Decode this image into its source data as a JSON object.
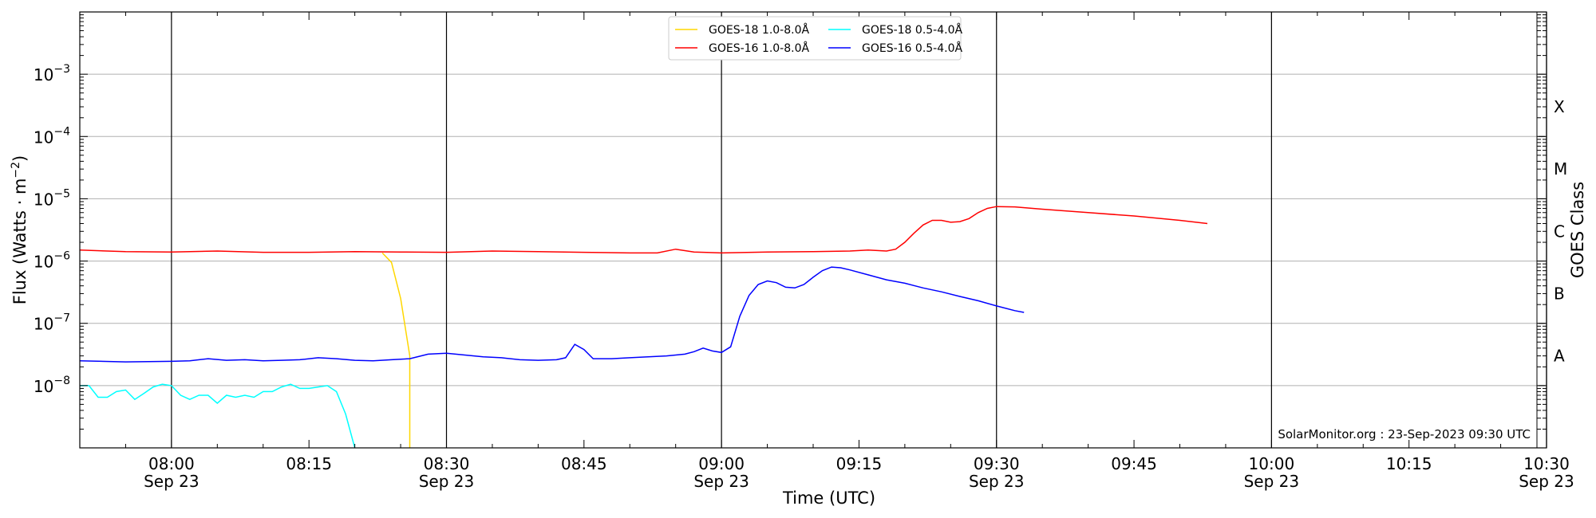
{
  "chart_data": {
    "type": "line",
    "title": "",
    "xlabel": "Time (UTC)",
    "ylabel": "Flux (Watts · m",
    "ylabel_sup": "−2",
    "ylabel_close": ")",
    "y2label": "GOES Class",
    "y_scale": "log",
    "ylim": [
      1e-09,
      0.01
    ],
    "xlim": [
      "07:50",
      "10:30"
    ],
    "date_label": "Sep 23",
    "x_ticks": [
      {
        "t": "08:00",
        "label": "08:00",
        "date": "Sep 23"
      },
      {
        "t": "08:15",
        "label": "08:15",
        "date": ""
      },
      {
        "t": "08:30",
        "label": "08:30",
        "date": "Sep 23"
      },
      {
        "t": "08:45",
        "label": "08:45",
        "date": ""
      },
      {
        "t": "09:00",
        "label": "09:00",
        "date": "Sep 23"
      },
      {
        "t": "09:15",
        "label": "09:15",
        "date": ""
      },
      {
        "t": "09:30",
        "label": "09:30",
        "date": "Sep 23"
      },
      {
        "t": "09:45",
        "label": "09:45",
        "date": ""
      },
      {
        "t": "10:00",
        "label": "10:00",
        "date": "Sep 23"
      },
      {
        "t": "10:15",
        "label": "10:15",
        "date": ""
      },
      {
        "t": "10:30",
        "label": "10:30",
        "date": "Sep 23"
      }
    ],
    "vertical_lines": [
      "08:00",
      "08:30",
      "09:00",
      "09:30",
      "10:00",
      "10:30"
    ],
    "y_ticks": [
      {
        "v": 1e-08,
        "base": "10",
        "exp": "−8"
      },
      {
        "v": 1e-07,
        "base": "10",
        "exp": "−7"
      },
      {
        "v": 1e-06,
        "base": "10",
        "exp": "−6"
      },
      {
        "v": 1e-05,
        "base": "10",
        "exp": "−5"
      },
      {
        "v": 0.0001,
        "base": "10",
        "exp": "−4"
      },
      {
        "v": 0.001,
        "base": "10",
        "exp": "−3"
      }
    ],
    "class_labels": [
      {
        "label": "A",
        "v": 3e-08
      },
      {
        "label": "B",
        "v": 3e-07
      },
      {
        "label": "C",
        "v": 3e-06
      },
      {
        "label": "M",
        "v": 3e-05
      },
      {
        "label": "X",
        "v": 0.0003
      }
    ],
    "grid_y": true,
    "legend_position": "top-center",
    "credit": "SolarMonitor.org : 23-Sep-2023 09:30 UTC",
    "series": [
      {
        "name": "GOES-18 1.0-8.0Å",
        "color": "#ffd700",
        "points": [
          [
            "08:23",
            1.35e-06
          ],
          [
            "08:24",
            9.5e-07
          ],
          [
            "08:25",
            2.5e-07
          ],
          [
            "08:26",
            3e-08
          ],
          [
            "08:26",
            1e-09
          ]
        ]
      },
      {
        "name": "GOES-18 0.5-4.0Å",
        "color": "#00ffff",
        "points": [
          [
            "07:50",
            1e-08
          ],
          [
            "07:51",
            1e-08
          ],
          [
            "07:52",
            6.5e-09
          ],
          [
            "07:53",
            6.5e-09
          ],
          [
            "07:54",
            8e-09
          ],
          [
            "07:55",
            8.5e-09
          ],
          [
            "07:56",
            6e-09
          ],
          [
            "07:57",
            7.5e-09
          ],
          [
            "07:58",
            9.5e-09
          ],
          [
            "07:59",
            1.05e-08
          ],
          [
            "08:00",
            1e-08
          ],
          [
            "08:01",
            7e-09
          ],
          [
            "08:02",
            6e-09
          ],
          [
            "08:03",
            7e-09
          ],
          [
            "08:04",
            7e-09
          ],
          [
            "08:05",
            5.2e-09
          ],
          [
            "08:06",
            7e-09
          ],
          [
            "08:07",
            6.5e-09
          ],
          [
            "08:08",
            7e-09
          ],
          [
            "08:09",
            6.5e-09
          ],
          [
            "08:10",
            8e-09
          ],
          [
            "08:11",
            8e-09
          ],
          [
            "08:12",
            9.5e-09
          ],
          [
            "08:13",
            1.05e-08
          ],
          [
            "08:14",
            9e-09
          ],
          [
            "08:15",
            9e-09
          ],
          [
            "08:16",
            9.5e-09
          ],
          [
            "08:17",
            1e-08
          ],
          [
            "08:18",
            8e-09
          ],
          [
            "08:19",
            3.5e-09
          ],
          [
            "08:20",
            1e-09
          ]
        ]
      },
      {
        "name": "GOES-16 1.0-8.0Å",
        "color": "#ff0000",
        "points": [
          [
            "07:50",
            1.5e-06
          ],
          [
            "07:55",
            1.42e-06
          ],
          [
            "08:00",
            1.4e-06
          ],
          [
            "08:05",
            1.45e-06
          ],
          [
            "08:10",
            1.38e-06
          ],
          [
            "08:15",
            1.38e-06
          ],
          [
            "08:20",
            1.42e-06
          ],
          [
            "08:25",
            1.4e-06
          ],
          [
            "08:30",
            1.38e-06
          ],
          [
            "08:35",
            1.45e-06
          ],
          [
            "08:40",
            1.42e-06
          ],
          [
            "08:45",
            1.38e-06
          ],
          [
            "08:50",
            1.35e-06
          ],
          [
            "08:53",
            1.35e-06
          ],
          [
            "08:55",
            1.55e-06
          ],
          [
            "08:57",
            1.4e-06
          ],
          [
            "09:00",
            1.35e-06
          ],
          [
            "09:05",
            1.4e-06
          ],
          [
            "09:10",
            1.42e-06
          ],
          [
            "09:14",
            1.45e-06
          ],
          [
            "09:16",
            1.5e-06
          ],
          [
            "09:18",
            1.45e-06
          ],
          [
            "09:19",
            1.55e-06
          ],
          [
            "09:20",
            2e-06
          ],
          [
            "09:21",
            2.8e-06
          ],
          [
            "09:22",
            3.8e-06
          ],
          [
            "09:23",
            4.5e-06
          ],
          [
            "09:24",
            4.5e-06
          ],
          [
            "09:25",
            4.2e-06
          ],
          [
            "09:26",
            4.3e-06
          ],
          [
            "09:27",
            4.8e-06
          ],
          [
            "09:28",
            6e-06
          ],
          [
            "09:29",
            7e-06
          ],
          [
            "09:30",
            7.5e-06
          ],
          [
            "09:32",
            7.4e-06
          ],
          [
            "09:35",
            6.8e-06
          ],
          [
            "09:40",
            6e-06
          ],
          [
            "09:45",
            5.3e-06
          ],
          [
            "09:50",
            4.5e-06
          ],
          [
            "09:53",
            4e-06
          ]
        ]
      },
      {
        "name": "GOES-16 0.5-4.0Å",
        "color": "#0000ff",
        "points": [
          [
            "07:50",
            2.5e-08
          ],
          [
            "07:55",
            2.4e-08
          ],
          [
            "08:00",
            2.45e-08
          ],
          [
            "08:02",
            2.5e-08
          ],
          [
            "08:04",
            2.7e-08
          ],
          [
            "08:06",
            2.55e-08
          ],
          [
            "08:08",
            2.6e-08
          ],
          [
            "08:10",
            2.5e-08
          ],
          [
            "08:12",
            2.55e-08
          ],
          [
            "08:14",
            2.6e-08
          ],
          [
            "08:16",
            2.8e-08
          ],
          [
            "08:18",
            2.7e-08
          ],
          [
            "08:20",
            2.55e-08
          ],
          [
            "08:22",
            2.5e-08
          ],
          [
            "08:24",
            2.6e-08
          ],
          [
            "08:26",
            2.7e-08
          ],
          [
            "08:28",
            3.2e-08
          ],
          [
            "08:30",
            3.3e-08
          ],
          [
            "08:32",
            3.1e-08
          ],
          [
            "08:34",
            2.9e-08
          ],
          [
            "08:36",
            2.8e-08
          ],
          [
            "08:38",
            2.6e-08
          ],
          [
            "08:40",
            2.55e-08
          ],
          [
            "08:42",
            2.6e-08
          ],
          [
            "08:43",
            2.8e-08
          ],
          [
            "08:44",
            4.6e-08
          ],
          [
            "08:45",
            3.8e-08
          ],
          [
            "08:46",
            2.7e-08
          ],
          [
            "08:48",
            2.7e-08
          ],
          [
            "08:50",
            2.8e-08
          ],
          [
            "08:52",
            2.9e-08
          ],
          [
            "08:54",
            3e-08
          ],
          [
            "08:56",
            3.2e-08
          ],
          [
            "08:57",
            3.5e-08
          ],
          [
            "08:58",
            4e-08
          ],
          [
            "08:59",
            3.6e-08
          ],
          [
            "09:00",
            3.4e-08
          ],
          [
            "09:01",
            4.2e-08
          ],
          [
            "09:02",
            1.3e-07
          ],
          [
            "09:03",
            2.8e-07
          ],
          [
            "09:04",
            4.2e-07
          ],
          [
            "09:05",
            4.8e-07
          ],
          [
            "09:06",
            4.5e-07
          ],
          [
            "09:07",
            3.8e-07
          ],
          [
            "09:08",
            3.7e-07
          ],
          [
            "09:09",
            4.2e-07
          ],
          [
            "09:10",
            5.5e-07
          ],
          [
            "09:11",
            7e-07
          ],
          [
            "09:12",
            8e-07
          ],
          [
            "09:13",
            7.8e-07
          ],
          [
            "09:14",
            7.2e-07
          ],
          [
            "09:16",
            6e-07
          ],
          [
            "09:18",
            5e-07
          ],
          [
            "09:20",
            4.4e-07
          ],
          [
            "09:22",
            3.7e-07
          ],
          [
            "09:24",
            3.2e-07
          ],
          [
            "09:26",
            2.7e-07
          ],
          [
            "09:28",
            2.3e-07
          ],
          [
            "09:30",
            1.9e-07
          ],
          [
            "09:32",
            1.6e-07
          ],
          [
            "09:33",
            1.5e-07
          ]
        ]
      }
    ],
    "legend": {
      "columns": [
        [
          "GOES-18 1.0-8.0Å",
          "GOES-16 1.0-8.0Å"
        ],
        [
          "GOES-18 0.5-4.0Å",
          "GOES-16 0.5-4.0Å"
        ]
      ]
    }
  }
}
